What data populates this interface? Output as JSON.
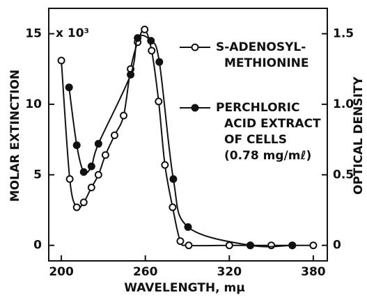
{
  "chart_data": {
    "type": "line",
    "xlabel": "WAVELENGTH, mμ",
    "ylabel": "MOLAR EXTINCTION",
    "y2label": "OPTICAL DENSITY",
    "annotation": "x 10³",
    "xlim": [
      191,
      390
    ],
    "xticks": [
      200,
      260,
      320,
      380
    ],
    "ylim": [
      -1.1,
      16.8
    ],
    "yticks": [
      0,
      5,
      10,
      15
    ],
    "y2lim": [
      -0.11,
      1.68
    ],
    "y2ticks": [
      0,
      0.5,
      {
        "value": 1,
        "label": "1.0"
      },
      1.5
    ],
    "series": [
      {
        "name": "S-ADENOSYL-\nMETHIONINE",
        "color": "#111",
        "marker": "open",
        "x": [
          200,
          206,
          211,
          216,
          221.5,
          226.5,
          231.5,
          238,
          244.5,
          249.5,
          254.5,
          259.5,
          264.5,
          269.5,
          274,
          279.5,
          285,
          291,
          320,
          335,
          350,
          365,
          380
        ],
        "values": [
          13.1,
          4.7,
          2.7,
          3.05,
          4.1,
          5.0,
          6.4,
          7.8,
          9.2,
          12.5,
          14.4,
          15.3,
          13.8,
          10.2,
          5.7,
          2.7,
          0.3,
          0,
          0,
          0,
          0,
          0,
          0
        ]
      },
      {
        "name": "PERCHLORIC\nACID EXTRACT\nOF CELLS\n(0.78 mg/mℓ)",
        "color": "#111",
        "marker": "filled",
        "axis": "y2",
        "x": [
          205.5,
          211,
          216,
          221.5,
          226.5,
          249.5,
          254.5,
          264,
          270,
          280,
          290.5,
          335,
          365
        ],
        "values": [
          1.12,
          0.71,
          0.52,
          0.56,
          0.72,
          1.21,
          1.47,
          1.45,
          1.3,
          0.47,
          0.13,
          0,
          0
        ]
      }
    ]
  }
}
